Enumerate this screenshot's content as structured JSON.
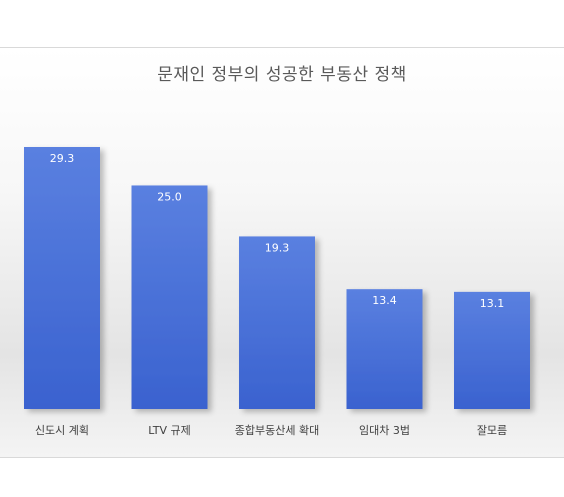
{
  "chart_data": {
    "type": "bar",
    "title": "문재인 정부의 성공한 부동산 정책",
    "categories": [
      "신도시 계획",
      "LTV 규제",
      "종합부동산세 확대",
      "임대차 3법",
      "잘모름"
    ],
    "values": [
      29.3,
      25.0,
      19.3,
      13.4,
      13.1
    ],
    "value_labels": [
      "29.3",
      "25.0",
      "19.3",
      "13.4",
      "13.1"
    ],
    "xlabel": "",
    "ylabel": "",
    "ylim": [
      0,
      29.3
    ],
    "grid": false,
    "legend": "none",
    "colors": {
      "bar_top": "#5a80e0",
      "bar_bottom": "#3a62cf",
      "label": "#ffffff"
    }
  }
}
